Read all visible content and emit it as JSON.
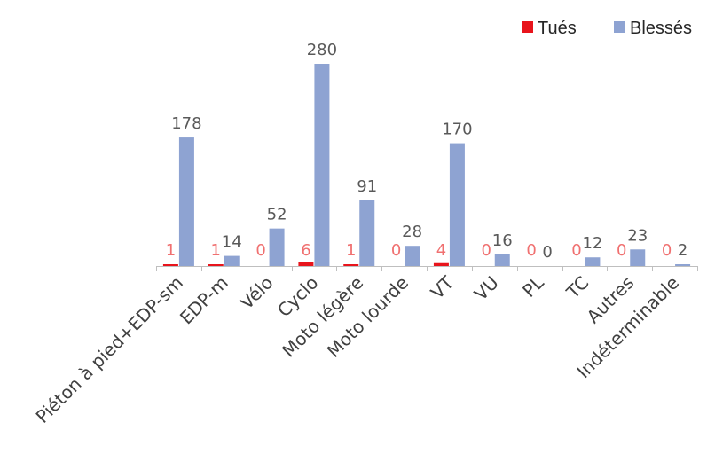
{
  "chart_data": {
    "type": "bar",
    "categories": [
      "Piéton à pied+EDP-sm",
      "EDP-m",
      "Vélo",
      "Cyclo",
      "Moto légère",
      "Moto lourde",
      "VT",
      "VU",
      "PL",
      "TC",
      "Autres",
      "Indéterminable"
    ],
    "series": [
      {
        "name": "Tués",
        "values": [
          1,
          1,
          0,
          6,
          1,
          0,
          4,
          0,
          0,
          0,
          0,
          0
        ],
        "color": "#e8141c",
        "label_color": "#f07070"
      },
      {
        "name": "Blessés",
        "values": [
          178,
          14,
          52,
          280,
          91,
          28,
          170,
          16,
          0,
          12,
          23,
          2
        ],
        "color": "#8ea3d2",
        "label_color": "#595959"
      }
    ],
    "ylim": [
      0,
      280
    ],
    "grid": false,
    "legend_position": "top-right",
    "axis_color": "#bfbfbf"
  }
}
